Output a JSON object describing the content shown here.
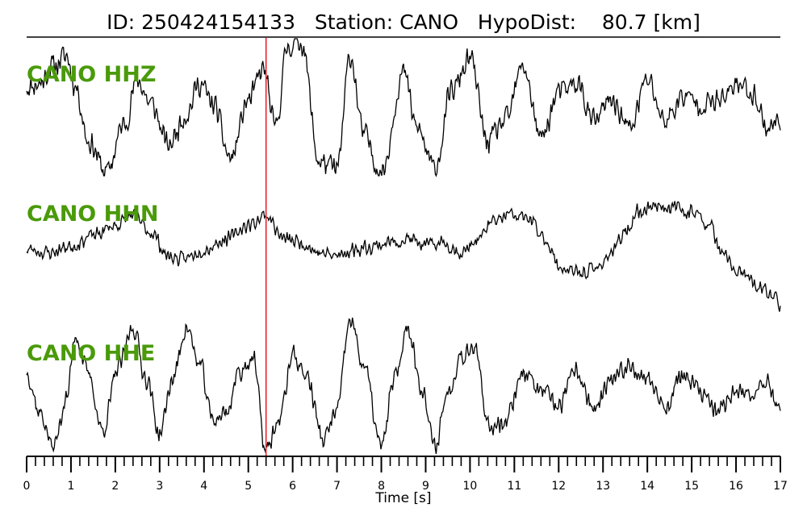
{
  "header": {
    "id_label": "ID:",
    "event_id": "250424154133",
    "station_label": "Station:",
    "station": "CANO",
    "hypodist_label": "HypoDist:",
    "hypodist_value": "80.7",
    "hypodist_unit": "[km]"
  },
  "colors": {
    "trace": "#000000",
    "channel_label": "#4a9a0a",
    "pick_line": "#e8242b",
    "axis": "#000000"
  },
  "chart_data": {
    "type": "line",
    "xlabel": "Time [s]",
    "xlim": [
      0,
      17
    ],
    "x_ticks": [
      "0",
      "1",
      "2",
      "3",
      "4",
      "5",
      "6",
      "7",
      "8",
      "9",
      "10",
      "11",
      "12",
      "13",
      "14",
      "15",
      "16",
      "17"
    ],
    "minor_tick_step": 0.2,
    "pick_time_s": 5.4,
    "traces": [
      {
        "channel": "CANO HHZ",
        "noise": 0.22,
        "seed": 11,
        "points": [
          [
            0,
            0.3
          ],
          [
            0.3,
            0.35
          ],
          [
            0.6,
            0.6
          ],
          [
            0.9,
            0.75
          ],
          [
            1.1,
            0.3
          ],
          [
            1.4,
            -0.5
          ],
          [
            1.8,
            -0.95
          ],
          [
            2.2,
            -0.25
          ],
          [
            2.5,
            0.4
          ],
          [
            2.8,
            0.05
          ],
          [
            3.2,
            -0.55
          ],
          [
            3.6,
            -0.1
          ],
          [
            3.9,
            0.35
          ],
          [
            4.2,
            0.05
          ],
          [
            4.6,
            -0.75
          ],
          [
            5.0,
            0.1
          ],
          [
            5.35,
            0.55
          ],
          [
            5.6,
            -0.3
          ],
          [
            5.9,
            0.9
          ],
          [
            6.2,
            0.95
          ],
          [
            6.6,
            -0.8
          ],
          [
            7.0,
            -0.9
          ],
          [
            7.3,
            0.75
          ],
          [
            7.6,
            -0.4
          ],
          [
            8.0,
            -0.95
          ],
          [
            8.5,
            0.5
          ],
          [
            8.8,
            -0.3
          ],
          [
            9.2,
            -0.9
          ],
          [
            9.6,
            0.25
          ],
          [
            10.0,
            0.7
          ],
          [
            10.4,
            -0.5
          ],
          [
            10.8,
            -0.2
          ],
          [
            11.2,
            0.6
          ],
          [
            11.6,
            -0.45
          ],
          [
            12.0,
            0.2
          ],
          [
            12.4,
            0.35
          ],
          [
            12.8,
            -0.2
          ],
          [
            13.2,
            0.1
          ],
          [
            13.6,
            -0.3
          ],
          [
            14.0,
            0.4
          ],
          [
            14.4,
            -0.2
          ],
          [
            14.8,
            0.15
          ],
          [
            15.3,
            0.05
          ],
          [
            15.7,
            0.1
          ],
          [
            16.0,
            0.35
          ],
          [
            16.4,
            0.2
          ],
          [
            16.7,
            -0.3
          ],
          [
            17.0,
            -0.2
          ]
        ]
      },
      {
        "channel": "CANO HHN",
        "noise": 0.13,
        "seed": 23,
        "points": [
          [
            0,
            -0.05
          ],
          [
            0.5,
            -0.1
          ],
          [
            1.0,
            0.0
          ],
          [
            1.5,
            0.15
          ],
          [
            2.0,
            0.3
          ],
          [
            2.4,
            0.45
          ],
          [
            2.8,
            0.2
          ],
          [
            3.2,
            -0.15
          ],
          [
            3.5,
            -0.2
          ],
          [
            4.0,
            -0.05
          ],
          [
            4.5,
            0.1
          ],
          [
            5.0,
            0.3
          ],
          [
            5.4,
            0.45
          ],
          [
            5.8,
            0.1
          ],
          [
            6.2,
            0.05
          ],
          [
            6.6,
            -0.1
          ],
          [
            7.0,
            -0.15
          ],
          [
            7.4,
            -0.05
          ],
          [
            7.8,
            0.0
          ],
          [
            8.2,
            0.05
          ],
          [
            8.6,
            0.1
          ],
          [
            9.0,
            0.0
          ],
          [
            9.4,
            0.05
          ],
          [
            9.8,
            -0.1
          ],
          [
            10.2,
            0.1
          ],
          [
            10.5,
            0.35
          ],
          [
            10.9,
            0.45
          ],
          [
            11.3,
            0.4
          ],
          [
            11.7,
            0.1
          ],
          [
            12.0,
            -0.3
          ],
          [
            12.4,
            -0.4
          ],
          [
            12.8,
            -0.35
          ],
          [
            13.2,
            -0.1
          ],
          [
            13.5,
            0.2
          ],
          [
            13.8,
            0.5
          ],
          [
            14.2,
            0.6
          ],
          [
            14.6,
            0.55
          ],
          [
            15.0,
            0.5
          ],
          [
            15.4,
            0.3
          ],
          [
            15.7,
            -0.15
          ],
          [
            16.1,
            -0.4
          ],
          [
            16.5,
            -0.6
          ],
          [
            16.8,
            -0.7
          ],
          [
            17.0,
            -0.85
          ]
        ]
      },
      {
        "channel": "CANO HHE",
        "noise": 0.18,
        "seed": 37,
        "points": [
          [
            0,
            0.2
          ],
          [
            0.3,
            -0.4
          ],
          [
            0.6,
            -0.9
          ],
          [
            0.9,
            -0.2
          ],
          [
            1.1,
            0.75
          ],
          [
            1.4,
            0.15
          ],
          [
            1.7,
            -0.65
          ],
          [
            2.1,
            0.3
          ],
          [
            2.4,
            0.85
          ],
          [
            2.7,
            0.1
          ],
          [
            3.0,
            -0.7
          ],
          [
            3.3,
            0.1
          ],
          [
            3.6,
            0.85
          ],
          [
            3.9,
            0.3
          ],
          [
            4.2,
            -0.5
          ],
          [
            4.5,
            -0.4
          ],
          [
            4.8,
            0.2
          ],
          [
            5.1,
            0.4
          ],
          [
            5.4,
            -0.95
          ],
          [
            5.7,
            -0.5
          ],
          [
            6.0,
            0.45
          ],
          [
            6.3,
            0.15
          ],
          [
            6.7,
            -0.8
          ],
          [
            7.0,
            -0.35
          ],
          [
            7.3,
            0.95
          ],
          [
            7.6,
            0.3
          ],
          [
            8.0,
            -0.9
          ],
          [
            8.3,
            0.1
          ],
          [
            8.6,
            0.85
          ],
          [
            8.9,
            0.0
          ],
          [
            9.2,
            -0.9
          ],
          [
            9.5,
            -0.1
          ],
          [
            9.8,
            0.45
          ],
          [
            10.1,
            0.6
          ],
          [
            10.4,
            -0.6
          ],
          [
            10.8,
            -0.5
          ],
          [
            11.2,
            0.2
          ],
          [
            11.6,
            -0.1
          ],
          [
            12.0,
            -0.3
          ],
          [
            12.4,
            0.2
          ],
          [
            12.8,
            -0.35
          ],
          [
            13.2,
            0.05
          ],
          [
            13.6,
            0.3
          ],
          [
            14.0,
            0.1
          ],
          [
            14.4,
            -0.3
          ],
          [
            14.8,
            0.15
          ],
          [
            15.2,
            -0.1
          ],
          [
            15.6,
            -0.4
          ],
          [
            16.0,
            -0.05
          ],
          [
            16.3,
            -0.2
          ],
          [
            16.6,
            0.1
          ],
          [
            17.0,
            -0.3
          ]
        ]
      }
    ]
  }
}
